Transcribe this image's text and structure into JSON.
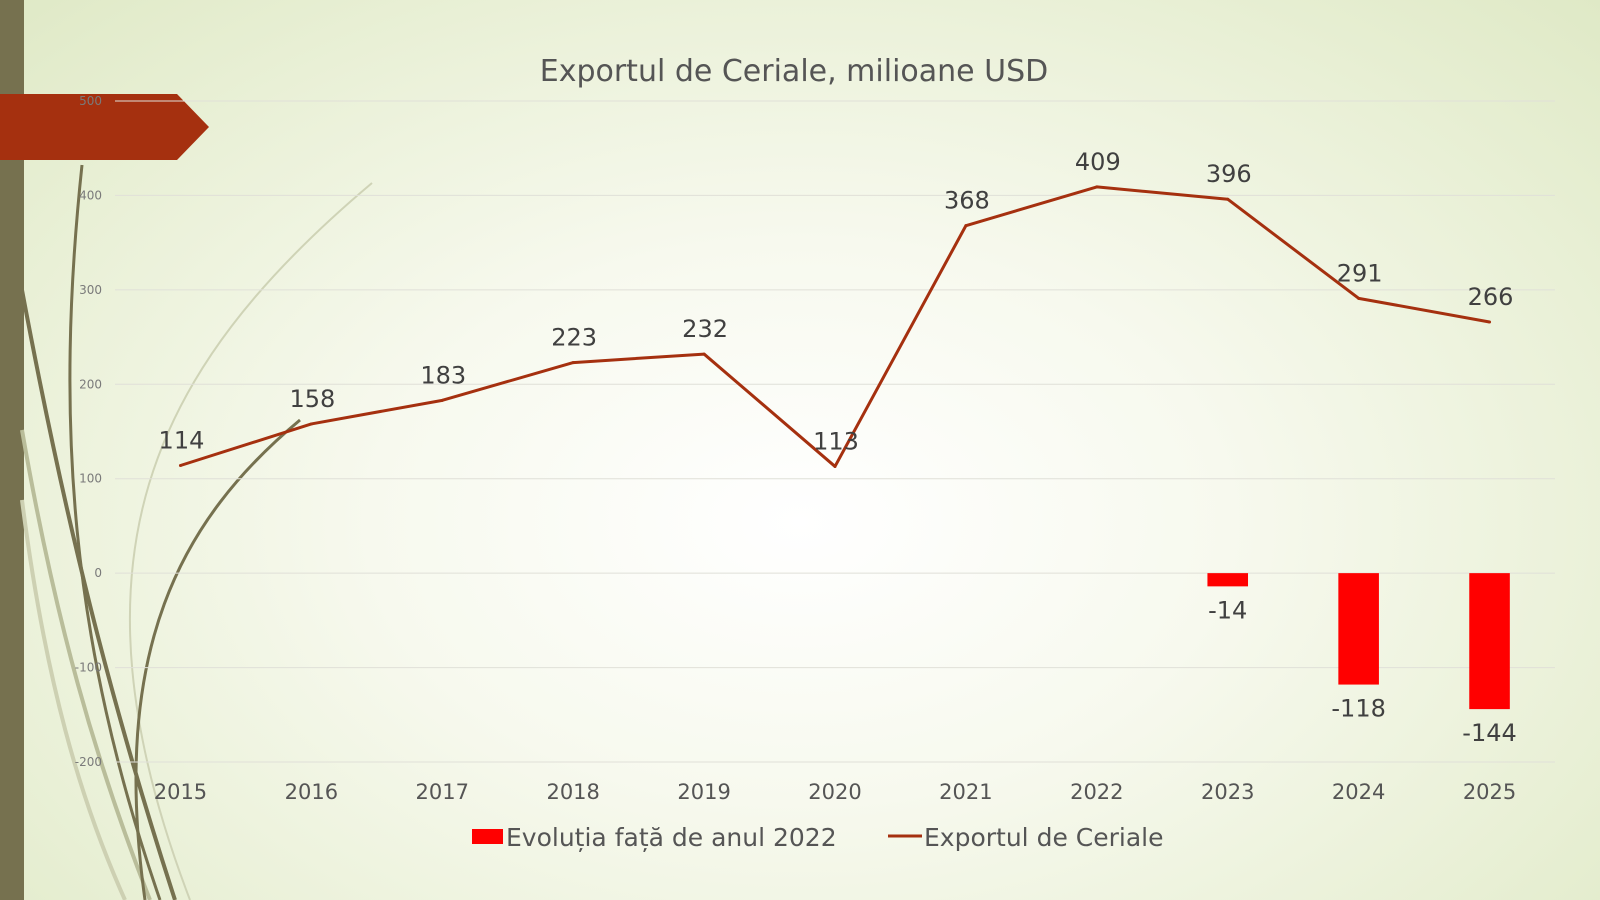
{
  "chart_data": {
    "type": "bar+line",
    "title": "Exportul de Ceriale, milioane USD",
    "categories": [
      "2015",
      "2016",
      "2017",
      "2018",
      "2019",
      "2020",
      "2021",
      "2022",
      "2023",
      "2024",
      "2025"
    ],
    "series": [
      {
        "name": "Evoluția față de anul 2022",
        "type": "bar",
        "color": "#ff0000",
        "values": [
          null,
          null,
          null,
          null,
          null,
          null,
          null,
          null,
          -14,
          -118,
          -144
        ]
      },
      {
        "name": "Exportul de Ceriale",
        "type": "line",
        "color": "#a5300f",
        "values": [
          114,
          158,
          183,
          223,
          232,
          113,
          368,
          409,
          396,
          291,
          266
        ]
      }
    ],
    "ylim": [
      -200,
      500
    ],
    "yticks": [
      -200,
      -100,
      0,
      100,
      200,
      300,
      400,
      500
    ],
    "xlabel": "",
    "ylabel": "",
    "grid": true,
    "legend": "bottom"
  },
  "theme": {
    "banner_color": "#a5300f",
    "sidebar_color": "#76714f",
    "grid_color": "#e0e0d8"
  }
}
